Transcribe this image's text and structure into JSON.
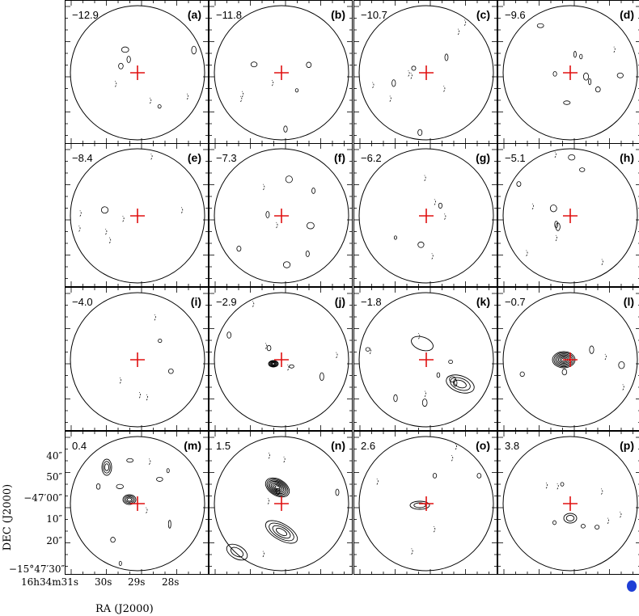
{
  "figure": {
    "colors": {
      "frame": "#000000",
      "contour": "#000000",
      "cross": "#e01010",
      "beam": "#1f3fd6"
    },
    "panels": [
      {
        "velocity": "−12.9",
        "letter": "(a)"
      },
      {
        "velocity": "−11.8",
        "letter": "(b)"
      },
      {
        "velocity": "−10.7",
        "letter": "(c)"
      },
      {
        "velocity": "−9.6",
        "letter": "(d)"
      },
      {
        "velocity": "−8.4",
        "letter": "(e)"
      },
      {
        "velocity": "−7.3",
        "letter": "(f)"
      },
      {
        "velocity": "−6.2",
        "letter": "(g)"
      },
      {
        "velocity": "−5.1",
        "letter": "(h)"
      },
      {
        "velocity": "−4.0",
        "letter": "(i)"
      },
      {
        "velocity": "−2.9",
        "letter": "(j)"
      },
      {
        "velocity": "−1.8",
        "letter": "(k)"
      },
      {
        "velocity": "−0.7",
        "letter": "(l)"
      },
      {
        "velocity": "0.4",
        "letter": "(m)"
      },
      {
        "velocity": "1.5",
        "letter": "(n)"
      },
      {
        "velocity": "2.6",
        "letter": "(o)"
      },
      {
        "velocity": "3.8",
        "letter": "(p)"
      }
    ],
    "y_axis": {
      "label": "DEC (J2000)",
      "ticks": [
        "40″",
        "50″",
        "−15°47′00″",
        "10″",
        "20″",
        "−15°47′30″"
      ]
    },
    "x_axis": {
      "label": "RA (J2000)",
      "ticks": [
        "16h34m31s",
        "30s",
        "29s",
        "28s"
      ]
    }
  }
}
